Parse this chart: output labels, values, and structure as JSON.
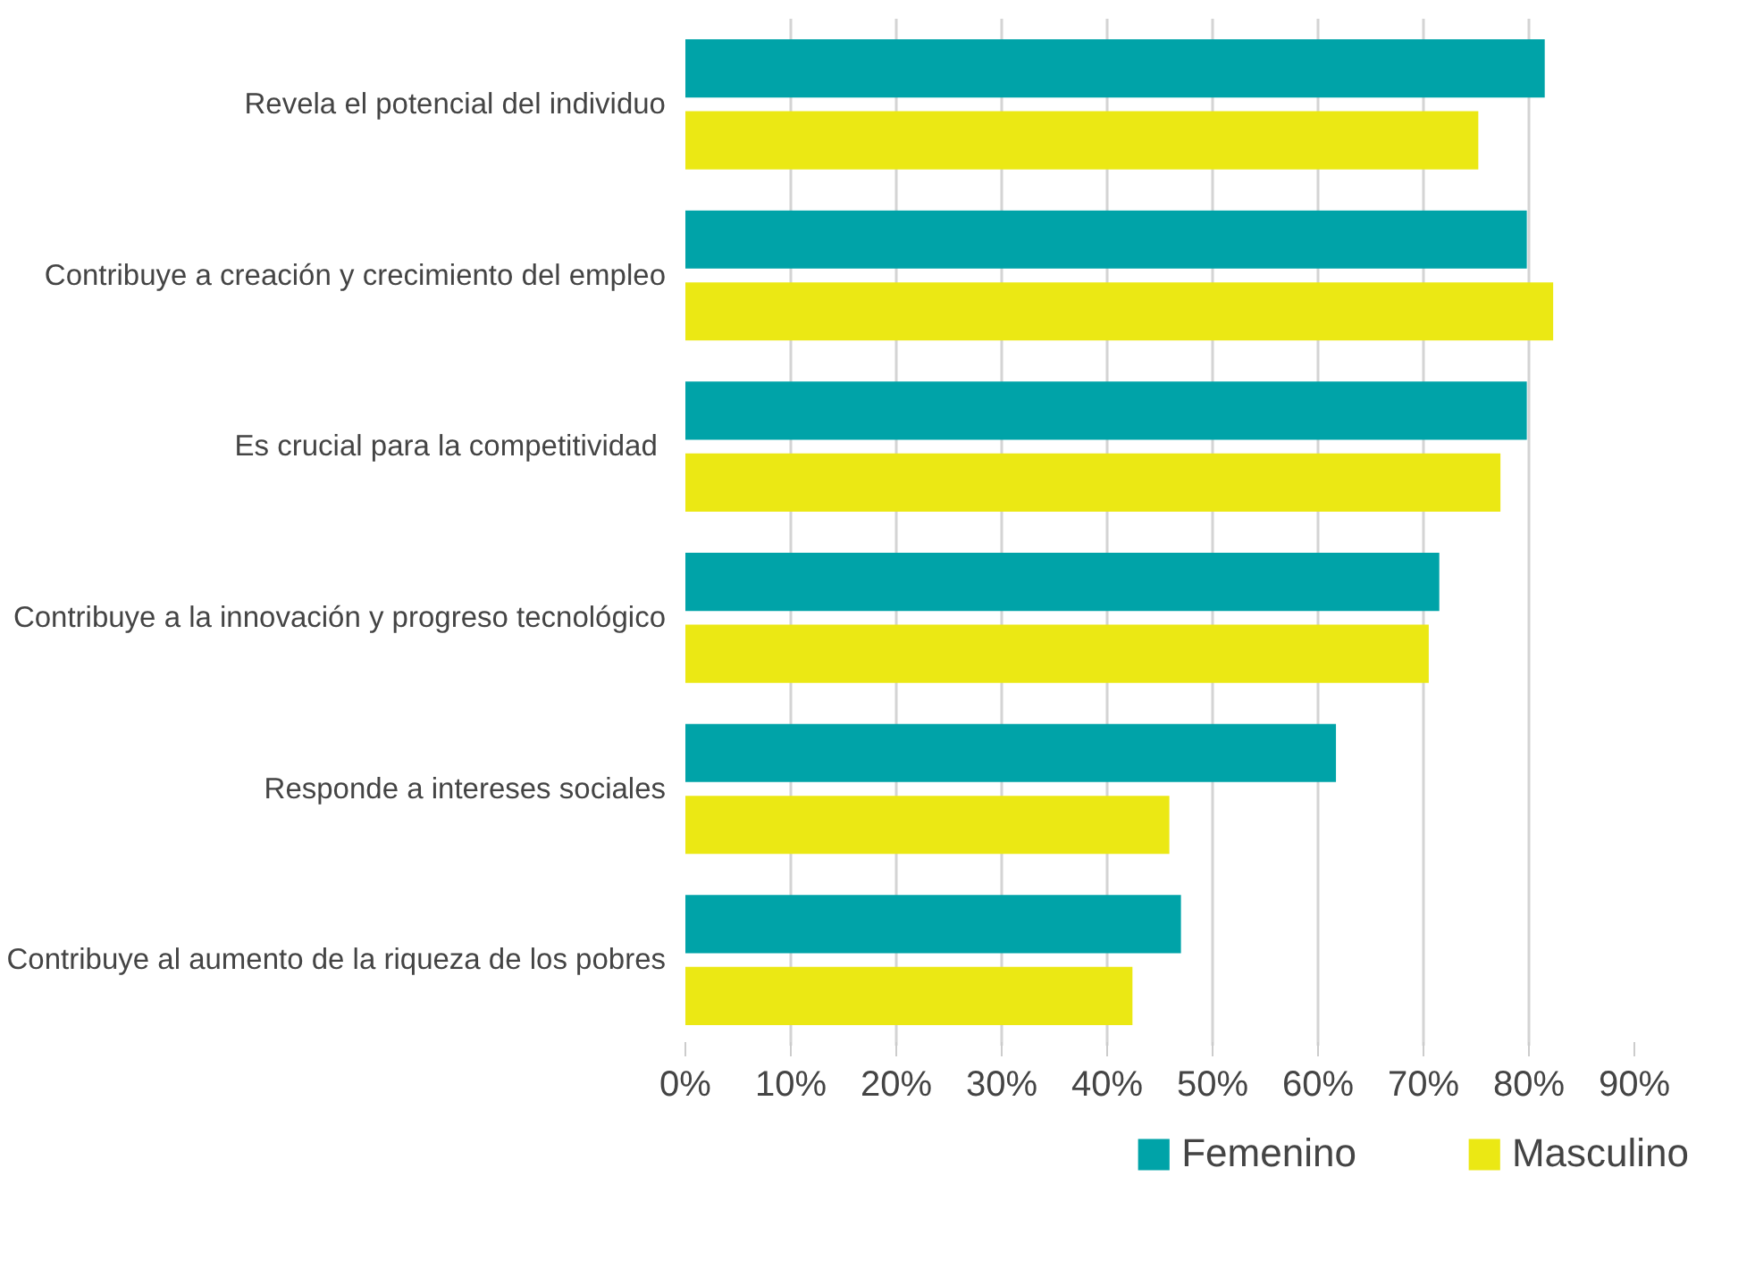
{
  "chart_data": {
    "type": "bar",
    "orientation": "horizontal",
    "categories": [
      "Revela el potencial del individuo",
      "Contribuye a creación y crecimiento del empleo",
      "Es crucial para la  competitividad",
      "Contribuye a la innovación y progreso tecnológico",
      "Responde a intereses sociales",
      "Contribuye al aumento de la riqueza de los pobres"
    ],
    "series": [
      {
        "name": "Femenino",
        "color": "#00a3a8",
        "values": [
          81.5,
          79.8,
          79.8,
          71.5,
          61.7,
          47.0
        ]
      },
      {
        "name": "Masculino",
        "color": "#ebe814",
        "values": [
          75.2,
          82.3,
          77.3,
          70.5,
          45.9,
          42.4
        ]
      }
    ],
    "xlim": [
      0,
      90
    ],
    "xticks": [
      {
        "value": 0,
        "label": "0%"
      },
      {
        "value": 10,
        "label": "10%"
      },
      {
        "value": 20,
        "label": "20%"
      },
      {
        "value": 30,
        "label": "30%"
      },
      {
        "value": 40,
        "label": "40%"
      },
      {
        "value": 50,
        "label": "50%"
      },
      {
        "value": 60,
        "label": "60%"
      },
      {
        "value": 70,
        "label": "70%"
      },
      {
        "value": 80,
        "label": "80%"
      },
      {
        "value": 90,
        "label": "90%"
      }
    ],
    "grid": "x",
    "legend": "bottom right"
  }
}
